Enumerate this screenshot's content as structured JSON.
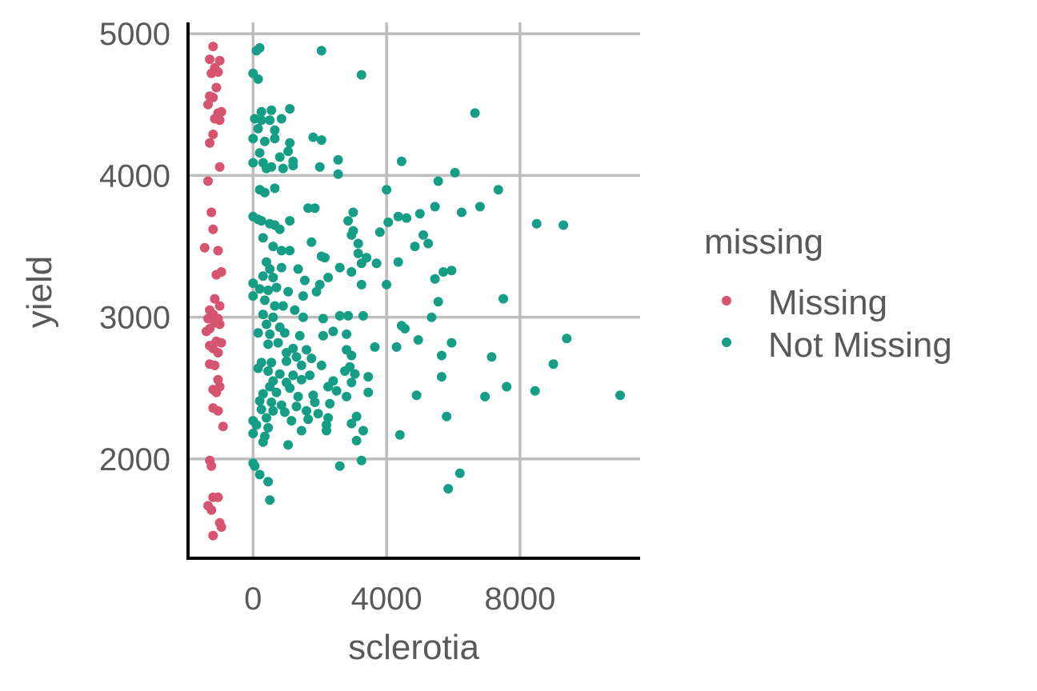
{
  "chart_data": {
    "type": "scatter",
    "title": "",
    "xlabel": "sclerotia",
    "ylabel": "yield",
    "xlim": [
      -1950,
      11600
    ],
    "ylim": [
      1300,
      5080
    ],
    "x_ticks": [
      0,
      4000,
      8000
    ],
    "x_tick_labels": [
      "0",
      "4000",
      "8000"
    ],
    "y_ticks": [
      2000,
      3000,
      4000,
      5000
    ],
    "y_tick_labels": [
      "2000",
      "3000",
      "4000",
      "5000"
    ],
    "grid": true,
    "legend": {
      "title": "missing",
      "position": "right",
      "entries": [
        {
          "label": "Missing",
          "color": "#d6546f"
        },
        {
          "label": "Not Missing",
          "color": "#159e85"
        }
      ]
    },
    "series": [
      {
        "name": "Missing",
        "color": "#d6546f",
        "points": [
          [
            -1200,
            4910
          ],
          [
            -1300,
            4820
          ],
          [
            -1000,
            4810
          ],
          [
            -1150,
            4760
          ],
          [
            -1250,
            4720
          ],
          [
            -1050,
            4730
          ],
          [
            -1100,
            4620
          ],
          [
            -1300,
            4560
          ],
          [
            -1200,
            4550
          ],
          [
            -1350,
            4500
          ],
          [
            -1050,
            4440
          ],
          [
            -950,
            4450
          ],
          [
            -1150,
            4400
          ],
          [
            -1000,
            4390
          ],
          [
            -1200,
            4290
          ],
          [
            -1300,
            4230
          ],
          [
            -1000,
            4060
          ],
          [
            -1350,
            3960
          ],
          [
            -1250,
            3740
          ],
          [
            -1200,
            3620
          ],
          [
            -1450,
            3490
          ],
          [
            -1050,
            3470
          ],
          [
            -950,
            3320
          ],
          [
            -1100,
            3300
          ],
          [
            -1150,
            3130
          ],
          [
            -1300,
            3050
          ],
          [
            -1000,
            3080
          ],
          [
            -1200,
            3020
          ],
          [
            -1350,
            2990
          ],
          [
            -1050,
            2990
          ],
          [
            -1150,
            2960
          ],
          [
            -1300,
            2920
          ],
          [
            -1000,
            2950
          ],
          [
            -1400,
            2900
          ],
          [
            -1100,
            2830
          ],
          [
            -950,
            2820
          ],
          [
            -1300,
            2800
          ],
          [
            -1200,
            2780
          ],
          [
            -1050,
            2750
          ],
          [
            -1300,
            2670
          ],
          [
            -1150,
            2660
          ],
          [
            -1050,
            2560
          ],
          [
            -1000,
            2510
          ],
          [
            -1200,
            2490
          ],
          [
            -1100,
            2470
          ],
          [
            -1200,
            2360
          ],
          [
            -1050,
            2340
          ],
          [
            -900,
            2230
          ],
          [
            -1300,
            1990
          ],
          [
            -1250,
            1950
          ],
          [
            -1200,
            1730
          ],
          [
            -1050,
            1730
          ],
          [
            -1350,
            1670
          ],
          [
            -1250,
            1640
          ],
          [
            -1000,
            1550
          ],
          [
            -950,
            1520
          ],
          [
            -1200,
            1460
          ]
        ]
      },
      {
        "name": "Not Missing",
        "color": "#159e85",
        "points": [
          [
            100,
            4880
          ],
          [
            200,
            4900
          ],
          [
            2050,
            4880
          ],
          [
            3250,
            4710
          ],
          [
            0,
            4720
          ],
          [
            150,
            4680
          ],
          [
            6650,
            4440
          ],
          [
            1100,
            4470
          ],
          [
            250,
            4450
          ],
          [
            550,
            4460
          ],
          [
            50,
            4400
          ],
          [
            250,
            4390
          ],
          [
            500,
            4390
          ],
          [
            850,
            4400
          ],
          [
            150,
            4330
          ],
          [
            650,
            4320
          ],
          [
            1100,
            4230
          ],
          [
            1800,
            4270
          ],
          [
            2050,
            4250
          ],
          [
            0,
            4260
          ],
          [
            350,
            4240
          ],
          [
            650,
            4260
          ],
          [
            200,
            4160
          ],
          [
            800,
            4130
          ],
          [
            1050,
            4170
          ],
          [
            1200,
            4100
          ],
          [
            2550,
            4110
          ],
          [
            4450,
            4100
          ],
          [
            0,
            4090
          ],
          [
            300,
            4090
          ],
          [
            400,
            4050
          ],
          [
            550,
            4060
          ],
          [
            900,
            4050
          ],
          [
            1200,
            4070
          ],
          [
            2000,
            4060
          ],
          [
            2550,
            4010
          ],
          [
            6050,
            4020
          ],
          [
            5550,
            3960
          ],
          [
            7350,
            3900
          ],
          [
            4000,
            3900
          ],
          [
            200,
            3900
          ],
          [
            350,
            3880
          ],
          [
            650,
            3910
          ],
          [
            1650,
            3770
          ],
          [
            1850,
            3770
          ],
          [
            3000,
            3740
          ],
          [
            5000,
            3730
          ],
          [
            5450,
            3780
          ],
          [
            6250,
            3740
          ],
          [
            6800,
            3780
          ],
          [
            4350,
            3710
          ],
          [
            4600,
            3700
          ],
          [
            4050,
            3670
          ],
          [
            2850,
            3680
          ],
          [
            1100,
            3680
          ],
          [
            0,
            3710
          ],
          [
            150,
            3690
          ],
          [
            250,
            3680
          ],
          [
            500,
            3660
          ],
          [
            650,
            3650
          ],
          [
            800,
            3620
          ],
          [
            8500,
            3660
          ],
          [
            9300,
            3650
          ],
          [
            3000,
            3610
          ],
          [
            3800,
            3600
          ],
          [
            2950,
            3580
          ],
          [
            5100,
            3580
          ],
          [
            3150,
            3520
          ],
          [
            3150,
            3450
          ],
          [
            4850,
            3500
          ],
          [
            5250,
            3520
          ],
          [
            1750,
            3530
          ],
          [
            300,
            3560
          ],
          [
            600,
            3500
          ],
          [
            850,
            3470
          ],
          [
            1100,
            3470
          ],
          [
            2050,
            3430
          ],
          [
            2150,
            3420
          ],
          [
            3400,
            3420
          ],
          [
            3700,
            3380
          ],
          [
            4350,
            3390
          ],
          [
            3250,
            3380
          ],
          [
            2600,
            3350
          ],
          [
            2950,
            3320
          ],
          [
            5950,
            3330
          ],
          [
            5700,
            3320
          ],
          [
            5450,
            3270
          ],
          [
            400,
            3390
          ],
          [
            500,
            3340
          ],
          [
            850,
            3350
          ],
          [
            1350,
            3340
          ],
          [
            300,
            3290
          ],
          [
            600,
            3280
          ],
          [
            1550,
            3260
          ],
          [
            2250,
            3280
          ],
          [
            2000,
            3230
          ],
          [
            3250,
            3230
          ],
          [
            4000,
            3230
          ],
          [
            0,
            3240
          ],
          [
            200,
            3200
          ],
          [
            450,
            3190
          ],
          [
            700,
            3210
          ],
          [
            1050,
            3180
          ],
          [
            1500,
            3150
          ],
          [
            1900,
            3180
          ],
          [
            5550,
            3110
          ],
          [
            7500,
            3130
          ],
          [
            0,
            3150
          ],
          [
            350,
            3120
          ],
          [
            650,
            3080
          ],
          [
            900,
            3080
          ],
          [
            1250,
            3050
          ],
          [
            300,
            3020
          ],
          [
            600,
            3000
          ],
          [
            1500,
            3000
          ],
          [
            2100,
            2990
          ],
          [
            2600,
            3010
          ],
          [
            2850,
            3010
          ],
          [
            3300,
            3010
          ],
          [
            5350,
            3000
          ],
          [
            4450,
            2940
          ],
          [
            4550,
            2920
          ],
          [
            400,
            2950
          ],
          [
            800,
            2930
          ],
          [
            150,
            2890
          ],
          [
            500,
            2880
          ],
          [
            950,
            2890
          ],
          [
            1400,
            2870
          ],
          [
            2100,
            2870
          ],
          [
            2400,
            2900
          ],
          [
            2800,
            2880
          ],
          [
            4950,
            2840
          ],
          [
            5950,
            2820
          ],
          [
            9400,
            2850
          ],
          [
            450,
            2810
          ],
          [
            750,
            2820
          ],
          [
            1200,
            2780
          ],
          [
            1600,
            2770
          ],
          [
            3650,
            2790
          ],
          [
            4300,
            2790
          ],
          [
            2800,
            2770
          ],
          [
            2950,
            2730
          ],
          [
            1000,
            2750
          ],
          [
            1300,
            2720
          ],
          [
            1750,
            2710
          ],
          [
            5650,
            2730
          ],
          [
            7150,
            2720
          ],
          [
            1000,
            2690
          ],
          [
            250,
            2680
          ],
          [
            550,
            2680
          ],
          [
            1450,
            2660
          ],
          [
            2050,
            2660
          ],
          [
            2900,
            2650
          ],
          [
            9000,
            2670
          ],
          [
            150,
            2640
          ],
          [
            450,
            2620
          ],
          [
            800,
            2600
          ],
          [
            1200,
            2590
          ],
          [
            1700,
            2590
          ],
          [
            2750,
            2620
          ],
          [
            3050,
            2600
          ],
          [
            3450,
            2580
          ],
          [
            5650,
            2580
          ],
          [
            600,
            2550
          ],
          [
            1000,
            2540
          ],
          [
            1450,
            2560
          ],
          [
            2400,
            2550
          ],
          [
            2950,
            2540
          ],
          [
            7600,
            2510
          ],
          [
            500,
            2510
          ],
          [
            1100,
            2500
          ],
          [
            2250,
            2510
          ],
          [
            2500,
            2480
          ],
          [
            3450,
            2470
          ],
          [
            4900,
            2450
          ],
          [
            6950,
            2440
          ],
          [
            8450,
            2480
          ],
          [
            11000,
            2450
          ],
          [
            300,
            2460
          ],
          [
            700,
            2470
          ],
          [
            1350,
            2440
          ],
          [
            1800,
            2450
          ],
          [
            2800,
            2440
          ],
          [
            200,
            2410
          ],
          [
            550,
            2400
          ],
          [
            850,
            2380
          ],
          [
            1300,
            2370
          ],
          [
            1850,
            2400
          ],
          [
            2300,
            2390
          ],
          [
            250,
            2350
          ],
          [
            600,
            2340
          ],
          [
            950,
            2330
          ],
          [
            1600,
            2340
          ],
          [
            1950,
            2320
          ],
          [
            2250,
            2290
          ],
          [
            3100,
            2300
          ],
          [
            5800,
            2300
          ],
          [
            0,
            2270
          ],
          [
            400,
            2290
          ],
          [
            1150,
            2270
          ],
          [
            1650,
            2280
          ],
          [
            2200,
            2240
          ],
          [
            2950,
            2250
          ],
          [
            100,
            2240
          ],
          [
            450,
            2220
          ],
          [
            1450,
            2200
          ],
          [
            2200,
            2200
          ],
          [
            3300,
            2200
          ],
          [
            0,
            2180
          ],
          [
            350,
            2160
          ],
          [
            4400,
            2170
          ],
          [
            300,
            2120
          ],
          [
            1050,
            2100
          ],
          [
            3100,
            2130
          ],
          [
            0,
            1970
          ],
          [
            50,
            1950
          ],
          [
            2600,
            1950
          ],
          [
            3250,
            1990
          ],
          [
            200,
            1890
          ],
          [
            450,
            1840
          ],
          [
            6200,
            1900
          ],
          [
            5850,
            1790
          ],
          [
            500,
            1710
          ]
        ]
      }
    ]
  }
}
